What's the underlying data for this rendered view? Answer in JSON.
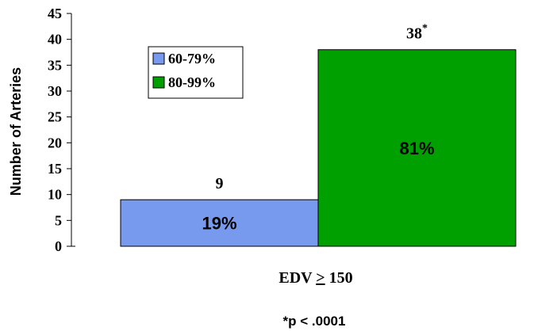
{
  "chart_data": {
    "type": "bar",
    "categories": [
      "EDV ≥ 150"
    ],
    "category_label_text": "EDV ",
    "category_label_symbol": ">",
    "category_label_value": " 150",
    "series": [
      {
        "name": "60-79%",
        "values": [
          9
        ],
        "value_label": "9",
        "inner_label": "19%",
        "color": "#7799ee"
      },
      {
        "name": "80-99%",
        "values": [
          38
        ],
        "value_label": "38",
        "value_marker": "*",
        "inner_label": "81%",
        "color": "#00a000"
      }
    ],
    "ylabel": "Number of Arteries",
    "ylim": [
      0,
      45
    ],
    "yticks": [
      0,
      5,
      10,
      15,
      20,
      25,
      30,
      35,
      40,
      45
    ],
    "grid": false,
    "legend_position": "top-left",
    "footnote": "*p < .0001"
  }
}
